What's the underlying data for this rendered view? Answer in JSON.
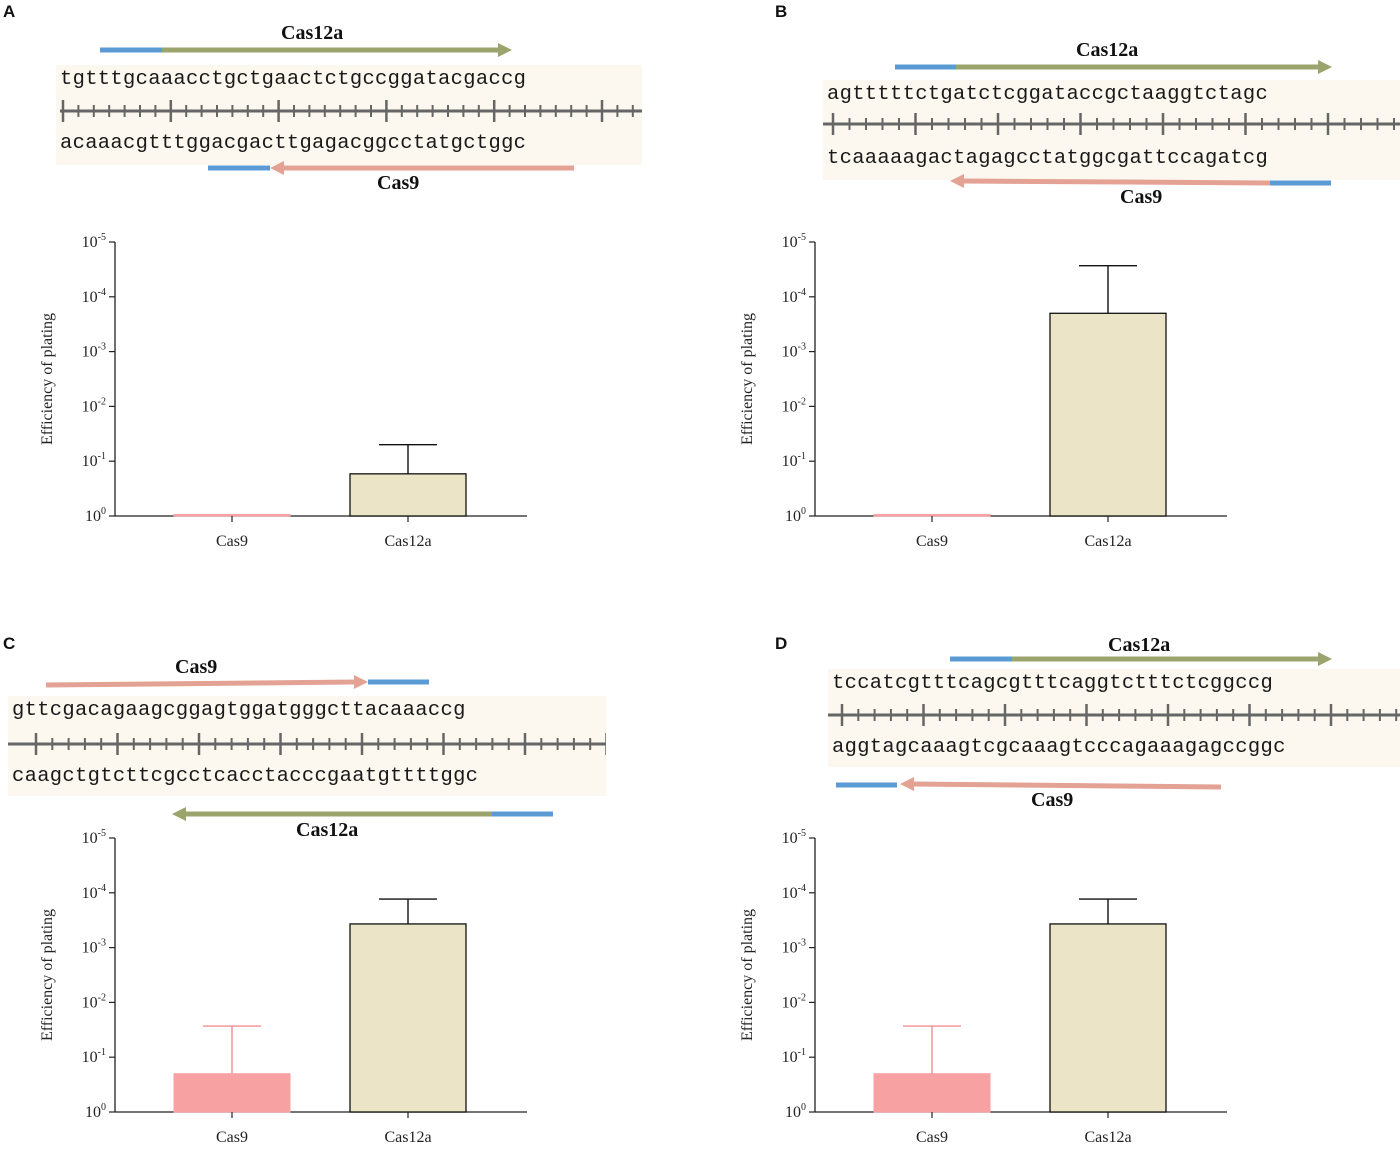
{
  "panels": [
    {
      "letter": "A",
      "sequence": {
        "top_strand": "tgtttgcaaacctgctgaactctgccggatacgaccg",
        "bottom_strand": "acaaacgtttggacgacttgagacggcctatgctggc",
        "upper_arrow": {
          "label": "Cas12a",
          "color": "#9aa46c",
          "direction": "right"
        },
        "lower_arrow": {
          "label": "Cas9",
          "color": "#e3a294",
          "direction": "left"
        },
        "pam_color": "#5b9bd5"
      },
      "chart_data": {
        "type": "bar",
        "categories": [
          "Cas9",
          "Cas12a"
        ],
        "values": [
          0.99,
          0.17
        ],
        "errors_upper": [
          0.99,
          0.05
        ],
        "bar_colors": [
          "#f8a1a3",
          "#ebe4c6"
        ],
        "ylabel": "Efficiency of plating",
        "yscale": "log-inverted",
        "yticks": [
          {
            "base": "10",
            "exp": "0"
          },
          {
            "base": "10",
            "exp": "-1"
          },
          {
            "base": "10",
            "exp": "-2"
          },
          {
            "base": "10",
            "exp": "-3"
          },
          {
            "base": "10",
            "exp": "-4"
          },
          {
            "base": "10",
            "exp": "-5"
          }
        ],
        "ylim": [
          1,
          1e-05
        ]
      }
    },
    {
      "letter": "B",
      "sequence": {
        "top_strand": "agtttttctgatctcggataccgctaaggtctagc",
        "bottom_strand": "tcaaaaagactagagcctatggcgattccagatcg",
        "upper_arrow": {
          "label": "Cas12a",
          "color": "#9aa46c",
          "direction": "right"
        },
        "lower_arrow": {
          "label": "Cas9",
          "color": "#e3a294",
          "direction": "left"
        },
        "pam_color": "#5b9bd5"
      },
      "chart_data": {
        "type": "bar",
        "categories": [
          "Cas9",
          "Cas12a"
        ],
        "values": [
          0.99,
          0.0002
        ],
        "errors_upper": [
          0.98,
          2.7e-05
        ],
        "bar_colors": [
          "#f8a1a3",
          "#ebe4c6"
        ],
        "ylabel": "Efficiency of plating",
        "yscale": "log-inverted",
        "yticks": [
          {
            "base": "10",
            "exp": "0"
          },
          {
            "base": "10",
            "exp": "-1"
          },
          {
            "base": "10",
            "exp": "-2"
          },
          {
            "base": "10",
            "exp": "-3"
          },
          {
            "base": "10",
            "exp": "-4"
          },
          {
            "base": "10",
            "exp": "-5"
          }
        ],
        "ylim": [
          1,
          1e-05
        ]
      }
    },
    {
      "letter": "C",
      "sequence": {
        "top_strand": "gttcgacagaagcggagtggatgggcttacaaaccg",
        "bottom_strand": "caagctgtcttcgcctcacctacccgaatgttttggc",
        "upper_arrow": {
          "label": "Cas9",
          "color": "#e3a294",
          "direction": "right"
        },
        "lower_arrow": {
          "label": "Cas12a",
          "color": "#9aa46c",
          "direction": "left"
        },
        "pam_color": "#5b9bd5"
      },
      "chart_data": {
        "type": "bar",
        "categories": [
          "Cas9",
          "Cas12a"
        ],
        "values": [
          0.2,
          0.00037
        ],
        "errors_upper": [
          0.027,
          0.00013
        ],
        "bar_colors": [
          "#f8a1a3",
          "#ebe4c6"
        ],
        "ylabel": "Efficiency of plating",
        "yscale": "log-inverted",
        "yticks": [
          {
            "base": "10",
            "exp": "0"
          },
          {
            "base": "10",
            "exp": "-1"
          },
          {
            "base": "10",
            "exp": "-2"
          },
          {
            "base": "10",
            "exp": "-3"
          },
          {
            "base": "10",
            "exp": "-4"
          },
          {
            "base": "10",
            "exp": "-5"
          }
        ],
        "ylim": [
          1,
          1e-05
        ]
      }
    },
    {
      "letter": "D",
      "sequence": {
        "top_strand": "tccatcgtttcagcgtttcaggtctttctcggccg",
        "bottom_strand": "aggtagcaaagtcgcaaagtcccagaaagagccggc",
        "upper_arrow": {
          "label": "Cas12a",
          "color": "#9aa46c",
          "direction": "right"
        },
        "lower_arrow": {
          "label": "Cas9",
          "color": "#e3a294",
          "direction": "left"
        },
        "pam_color": "#5b9bd5"
      },
      "chart_data": {
        "type": "bar",
        "categories": [
          "Cas9",
          "Cas12a"
        ],
        "values": [
          0.2,
          0.00037
        ],
        "errors_upper": [
          0.027,
          0.00013
        ],
        "bar_colors": [
          "#f8a1a3",
          "#ebe4c6"
        ],
        "ylabel": "Efficiency of plating",
        "yscale": "log-inverted",
        "yticks": [
          {
            "base": "10",
            "exp": "0"
          },
          {
            "base": "10",
            "exp": "-1"
          },
          {
            "base": "10",
            "exp": "-2"
          },
          {
            "base": "10",
            "exp": "-3"
          },
          {
            "base": "10",
            "exp": "-4"
          },
          {
            "base": "10",
            "exp": "-5"
          }
        ],
        "ylim": [
          1,
          1e-05
        ]
      }
    }
  ]
}
